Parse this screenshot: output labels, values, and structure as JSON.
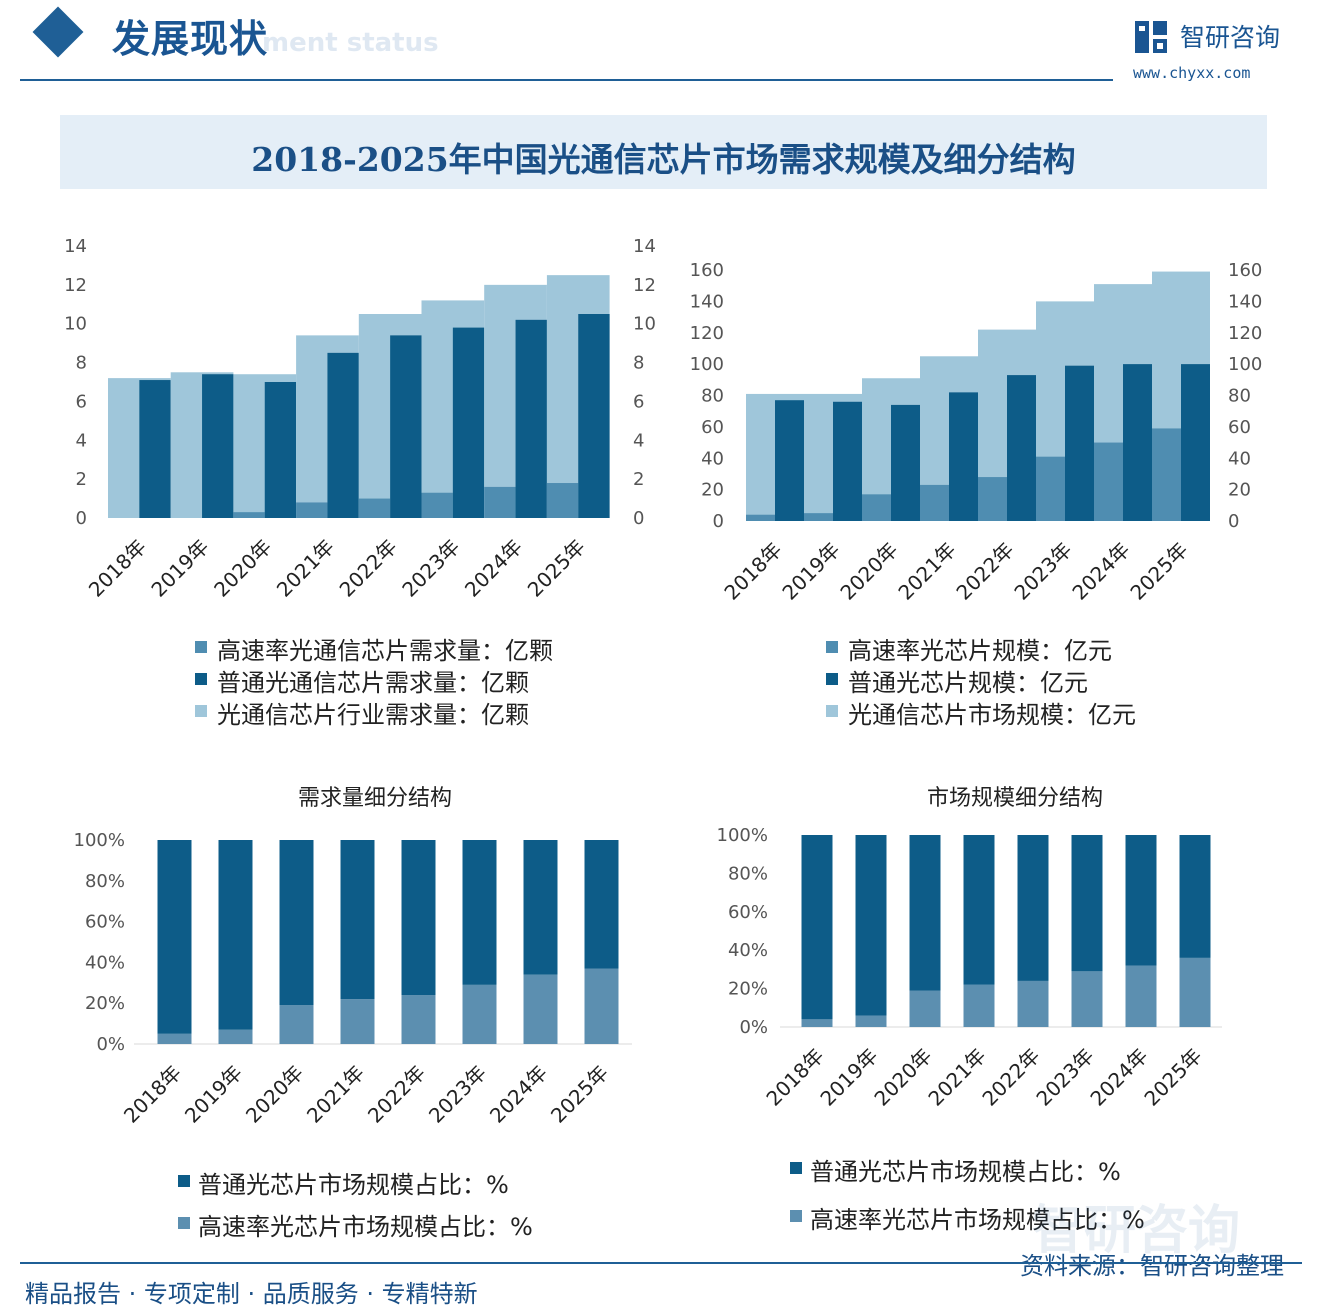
{
  "header": {
    "title": "发展现状",
    "subtitle": "ment status",
    "brand_name": "智研咨询",
    "brand_url": "www.chyxx.com"
  },
  "main_title": "2018-2025年中国光通信芯片市场需求规模及细分结构",
  "footer": {
    "slogan": "精品报告 · 专项定制 · 品质服务 · 专精特新",
    "source": "资料来源：智研咨询整理"
  },
  "watermark_text": "智研咨询",
  "colors": {
    "dark": "#0d5c88",
    "light": "#9fc6da",
    "mid": "#4f8db1",
    "brand": "#1a5592"
  },
  "chart_data": [
    {
      "type": "bar",
      "title": "",
      "categories": [
        "2018年",
        "2019年",
        "2020年",
        "2021年",
        "2022年",
        "2023年",
        "2024年",
        "2025年"
      ],
      "series": [
        {
          "name": "高速率光通信芯片需求量：亿颗",
          "values": [
            0,
            0,
            0.3,
            0.8,
            1.0,
            1.3,
            1.6,
            1.8
          ]
        },
        {
          "name": "普通光通信芯片需求量：亿颗",
          "values": [
            7.1,
            7.4,
            7.0,
            8.5,
            9.4,
            9.8,
            10.2,
            10.5
          ]
        },
        {
          "name": "光通信芯片行业需求量：亿颗",
          "values": [
            7.2,
            7.5,
            7.4,
            9.4,
            10.5,
            11.2,
            12.0,
            12.5
          ]
        }
      ],
      "ylim": [
        0,
        14
      ],
      "yticks": [
        "0",
        "2",
        "4",
        "6",
        "8",
        "10",
        "12",
        "14"
      ]
    },
    {
      "type": "bar",
      "title": "",
      "categories": [
        "2018年",
        "2019年",
        "2020年",
        "2021年",
        "2022年",
        "2023年",
        "2024年",
        "2025年"
      ],
      "series": [
        {
          "name": "高速率光芯片规模：亿元",
          "values": [
            4,
            5,
            17,
            23,
            28,
            41,
            50,
            59
          ]
        },
        {
          "name": "普通光芯片规模：亿元",
          "values": [
            77,
            76,
            74,
            82,
            93,
            99,
            100,
            100
          ]
        },
        {
          "name": "光通信芯片市场规模：亿元",
          "values": [
            81,
            81,
            91,
            105,
            122,
            140,
            151,
            159
          ]
        }
      ],
      "ylim": [
        0,
        160
      ],
      "yticks": [
        "0",
        "20",
        "40",
        "60",
        "80",
        "100",
        "120",
        "140",
        "160"
      ]
    },
    {
      "type": "bar",
      "title": "需求量细分结构",
      "stacked": true,
      "categories": [
        "2018年",
        "2019年",
        "2020年",
        "2021年",
        "2022年",
        "2023年",
        "2024年",
        "2025年"
      ],
      "series": [
        {
          "name": "普通光芯片市场规模占比：%",
          "values": [
            95,
            93,
            81,
            78,
            76,
            71,
            66,
            63
          ]
        },
        {
          "name": "高速率光芯片市场规模占比：%",
          "values": [
            5,
            7,
            19,
            22,
            24,
            29,
            34,
            37
          ]
        }
      ],
      "ylim": [
        0,
        100
      ],
      "yticks": [
        "0%",
        "20%",
        "40%",
        "60%",
        "80%",
        "100%"
      ]
    },
    {
      "type": "bar",
      "title": "市场规模细分结构",
      "stacked": true,
      "categories": [
        "2018年",
        "2019年",
        "2020年",
        "2021年",
        "2022年",
        "2023年",
        "2024年",
        "2025年"
      ],
      "series": [
        {
          "name": "普通光芯片市场规模占比：%",
          "values": [
            96,
            94,
            81,
            78,
            76,
            71,
            68,
            64
          ]
        },
        {
          "name": "高速率光芯片市场规模占比：%",
          "values": [
            4,
            6,
            19,
            22,
            24,
            29,
            32,
            36
          ]
        }
      ],
      "ylim": [
        0,
        100
      ],
      "yticks": [
        "0%",
        "20%",
        "40%",
        "60%",
        "80%",
        "100%"
      ]
    }
  ]
}
